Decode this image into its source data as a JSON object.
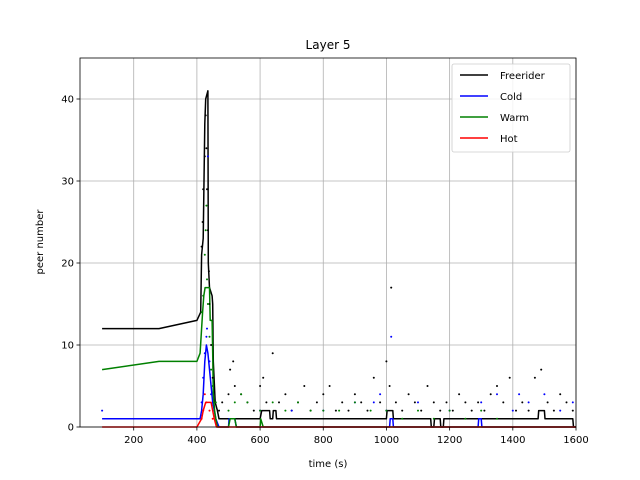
{
  "chart_data": {
    "type": "line",
    "title": "Layer 5",
    "xlabel": "time (s)",
    "ylabel": "peer number",
    "xlim": [
      30,
      1600
    ],
    "ylim": [
      0,
      45
    ],
    "x_ticks": [
      200,
      400,
      600,
      800,
      1000,
      1200,
      1400,
      1600
    ],
    "y_ticks": [
      0,
      10,
      20,
      30,
      40
    ],
    "grid": true,
    "legend_position": "top-right",
    "series": [
      {
        "name": "Freerider",
        "color": "#000000",
        "points": [
          [
            100,
            12
          ],
          [
            280,
            12
          ],
          [
            400,
            13
          ],
          [
            412,
            14
          ],
          [
            415,
            21
          ],
          [
            420,
            23
          ],
          [
            425,
            37
          ],
          [
            428,
            40
          ],
          [
            435,
            41
          ],
          [
            436,
            20
          ],
          [
            440,
            17
          ],
          [
            448,
            16
          ],
          [
            450,
            15
          ],
          [
            452,
            8
          ],
          [
            458,
            3
          ],
          [
            465,
            2
          ],
          [
            470,
            1
          ],
          [
            600,
            1
          ],
          [
            605,
            2
          ],
          [
            630,
            2
          ],
          [
            632,
            1
          ],
          [
            640,
            1
          ],
          [
            642,
            2
          ],
          [
            650,
            2
          ],
          [
            652,
            1
          ],
          [
            1000,
            1
          ],
          [
            1002,
            2
          ],
          [
            1020,
            2
          ],
          [
            1022,
            1
          ],
          [
            1140,
            1
          ],
          [
            1142,
            0
          ],
          [
            1150,
            0
          ],
          [
            1152,
            1
          ],
          [
            1170,
            1
          ],
          [
            1172,
            0
          ],
          [
            1180,
            0
          ],
          [
            1182,
            1
          ],
          [
            1480,
            1
          ],
          [
            1482,
            2
          ],
          [
            1500,
            2
          ],
          [
            1502,
            1
          ],
          [
            1590,
            1
          ],
          [
            1592,
            0
          ],
          [
            1600,
            0
          ]
        ]
      },
      {
        "name": "Cold",
        "color": "#0000ff",
        "points": [
          [
            100,
            1
          ],
          [
            410,
            1
          ],
          [
            415,
            2
          ],
          [
            420,
            4
          ],
          [
            425,
            8
          ],
          [
            430,
            10
          ],
          [
            435,
            9
          ],
          [
            440,
            7
          ],
          [
            445,
            5
          ],
          [
            450,
            3
          ],
          [
            455,
            2
          ],
          [
            460,
            1
          ],
          [
            470,
            0
          ],
          [
            500,
            0
          ],
          [
            502,
            1
          ],
          [
            520,
            1
          ],
          [
            525,
            0
          ],
          [
            1010,
            0
          ],
          [
            1012,
            1
          ],
          [
            1020,
            1
          ],
          [
            1022,
            0
          ],
          [
            1290,
            0
          ],
          [
            1292,
            1
          ],
          [
            1300,
            1
          ],
          [
            1302,
            0
          ],
          [
            1600,
            0
          ]
        ]
      },
      {
        "name": "Warm",
        "color": "#008000",
        "points": [
          [
            100,
            7
          ],
          [
            280,
            8
          ],
          [
            400,
            8
          ],
          [
            410,
            9
          ],
          [
            415,
            12
          ],
          [
            418,
            14
          ],
          [
            422,
            16
          ],
          [
            426,
            17
          ],
          [
            440,
            17
          ],
          [
            442,
            13
          ],
          [
            448,
            13
          ],
          [
            450,
            9
          ],
          [
            452,
            4
          ],
          [
            456,
            2
          ],
          [
            460,
            1
          ],
          [
            465,
            0
          ],
          [
            500,
            0
          ],
          [
            505,
            1
          ],
          [
            520,
            1
          ],
          [
            525,
            0
          ],
          [
            600,
            0
          ],
          [
            602,
            1
          ],
          [
            610,
            0
          ],
          [
            1600,
            0
          ]
        ]
      },
      {
        "name": "Hot",
        "color": "#ff0000",
        "points": [
          [
            100,
            0
          ],
          [
            400,
            0
          ],
          [
            415,
            1
          ],
          [
            420,
            2
          ],
          [
            428,
            3
          ],
          [
            445,
            3
          ],
          [
            450,
            2
          ],
          [
            455,
            1
          ],
          [
            462,
            0
          ],
          [
            1600,
            0
          ]
        ]
      }
    ],
    "scatter": {
      "Freerider": [
        [
          415,
          22
        ],
        [
          418,
          25
        ],
        [
          420,
          29
        ],
        [
          425,
          33
        ],
        [
          428,
          38
        ],
        [
          430,
          34
        ],
        [
          432,
          29
        ],
        [
          435,
          24
        ],
        [
          438,
          19
        ],
        [
          440,
          15
        ],
        [
          445,
          10
        ],
        [
          450,
          6
        ],
        [
          470,
          2
        ],
        [
          480,
          3
        ],
        [
          500,
          4
        ],
        [
          505,
          7
        ],
        [
          515,
          8
        ],
        [
          520,
          5
        ],
        [
          540,
          4
        ],
        [
          560,
          3
        ],
        [
          580,
          2
        ],
        [
          600,
          5
        ],
        [
          610,
          6
        ],
        [
          620,
          3
        ],
        [
          640,
          9
        ],
        [
          660,
          3
        ],
        [
          680,
          4
        ],
        [
          700,
          2
        ],
        [
          720,
          3
        ],
        [
          740,
          5
        ],
        [
          760,
          2
        ],
        [
          780,
          3
        ],
        [
          800,
          4
        ],
        [
          820,
          5
        ],
        [
          840,
          2
        ],
        [
          860,
          3
        ],
        [
          880,
          2
        ],
        [
          900,
          4
        ],
        [
          920,
          3
        ],
        [
          940,
          2
        ],
        [
          960,
          6
        ],
        [
          980,
          3
        ],
        [
          1000,
          8
        ],
        [
          1010,
          5
        ],
        [
          1015,
          17
        ],
        [
          1030,
          3
        ],
        [
          1050,
          2
        ],
        [
          1070,
          4
        ],
        [
          1090,
          3
        ],
        [
          1110,
          2
        ],
        [
          1130,
          5
        ],
        [
          1150,
          3
        ],
        [
          1170,
          2
        ],
        [
          1190,
          3
        ],
        [
          1210,
          2
        ],
        [
          1230,
          4
        ],
        [
          1250,
          3
        ],
        [
          1270,
          2
        ],
        [
          1290,
          3
        ],
        [
          1310,
          2
        ],
        [
          1330,
          4
        ],
        [
          1350,
          5
        ],
        [
          1370,
          3
        ],
        [
          1390,
          6
        ],
        [
          1410,
          2
        ],
        [
          1430,
          3
        ],
        [
          1450,
          2
        ],
        [
          1470,
          6
        ],
        [
          1490,
          7
        ],
        [
          1510,
          3
        ],
        [
          1530,
          2
        ],
        [
          1550,
          4
        ],
        [
          1570,
          3
        ],
        [
          1590,
          2
        ]
      ],
      "Cold": [
        [
          100,
          2
        ],
        [
          415,
          3
        ],
        [
          420,
          6
        ],
        [
          425,
          9
        ],
        [
          430,
          11
        ],
        [
          432,
          12
        ],
        [
          435,
          33
        ],
        [
          440,
          8
        ],
        [
          445,
          4
        ],
        [
          600,
          2
        ],
        [
          700,
          2
        ],
        [
          800,
          2
        ],
        [
          900,
          3
        ],
        [
          960,
          3
        ],
        [
          980,
          4
        ],
        [
          1000,
          2
        ],
        [
          1015,
          11
        ],
        [
          1100,
          3
        ],
        [
          1200,
          2
        ],
        [
          1300,
          3
        ],
        [
          1350,
          4
        ],
        [
          1400,
          2
        ],
        [
          1420,
          4
        ],
        [
          1450,
          3
        ],
        [
          1500,
          4
        ],
        [
          1550,
          2
        ],
        [
          1590,
          3
        ]
      ],
      "Warm": [
        [
          415,
          14
        ],
        [
          420,
          16
        ],
        [
          425,
          21
        ],
        [
          428,
          24
        ],
        [
          430,
          27
        ],
        [
          432,
          18
        ],
        [
          435,
          15
        ],
        [
          440,
          11
        ],
        [
          445,
          7
        ],
        [
          450,
          5
        ],
        [
          460,
          3
        ],
        [
          500,
          2
        ],
        [
          520,
          3
        ],
        [
          540,
          4
        ],
        [
          560,
          3
        ],
        [
          600,
          2
        ],
        [
          640,
          3
        ],
        [
          680,
          2
        ],
        [
          720,
          3
        ],
        [
          760,
          2
        ],
        [
          800,
          2
        ],
        [
          850,
          2
        ],
        [
          900,
          3
        ],
        [
          950,
          2
        ],
        [
          1000,
          2
        ],
        [
          1050,
          1
        ],
        [
          1100,
          2
        ],
        [
          1150,
          1
        ],
        [
          1200,
          2
        ],
        [
          1250,
          1
        ],
        [
          1300,
          2
        ],
        [
          1350,
          1
        ]
      ],
      "Hot": [
        [
          415,
          1
        ],
        [
          420,
          2
        ],
        [
          425,
          4
        ],
        [
          430,
          3
        ],
        [
          440,
          2
        ],
        [
          450,
          1
        ]
      ]
    }
  }
}
